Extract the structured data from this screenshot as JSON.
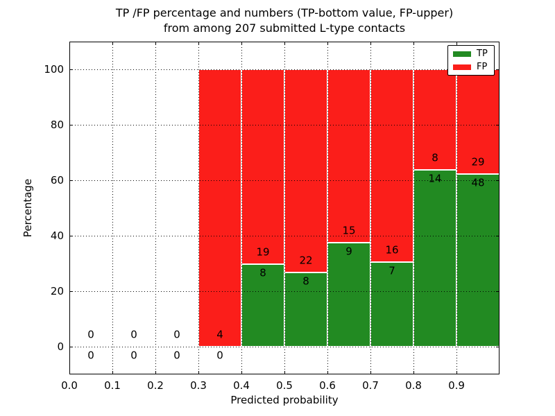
{
  "chart_data": {
    "type": "bar",
    "stacked": true,
    "title": "TP /FP percentage and numbers (TP-bottom value, FP-upper)\nfrom among 207 submitted L-type contacts",
    "xlabel": "Predicted probability",
    "ylabel": "Percentage",
    "total_contacts": 207,
    "xlim": [
      0.0,
      1.0
    ],
    "ylim": [
      -10,
      110
    ],
    "xticks": [
      "0.0",
      "0.1",
      "0.2",
      "0.3",
      "0.4",
      "0.5",
      "0.6",
      "0.7",
      "0.8",
      "0.9"
    ],
    "yticks": [
      "0",
      "20",
      "40",
      "60",
      "80",
      "100"
    ],
    "grid": "dotted",
    "grid_color": "#000000",
    "bar_width": 0.1,
    "bar_edge_color": "#ffffff",
    "annotation_note": "TP-bottom value, FP-upper",
    "bins": [
      {
        "x0": 0.0,
        "tp": 0,
        "fp": 0
      },
      {
        "x0": 0.1,
        "tp": 0,
        "fp": 0
      },
      {
        "x0": 0.2,
        "tp": 0,
        "fp": 0
      },
      {
        "x0": 0.3,
        "tp": 0,
        "fp": 4
      },
      {
        "x0": 0.4,
        "tp": 8,
        "fp": 19
      },
      {
        "x0": 0.5,
        "tp": 8,
        "fp": 22
      },
      {
        "x0": 0.6,
        "tp": 9,
        "fp": 15
      },
      {
        "x0": 0.7,
        "tp": 7,
        "fp": 16
      },
      {
        "x0": 0.8,
        "tp": 14,
        "fp": 8
      },
      {
        "x0": 0.9,
        "tp": 48,
        "fp": 29
      }
    ],
    "series": [
      {
        "name": "TP",
        "color": "#228a22"
      },
      {
        "name": "FP",
        "color": "#fb1e1a"
      }
    ],
    "legend": {
      "position": "upper right",
      "entries": [
        {
          "label": "TP",
          "color": "#228a22"
        },
        {
          "label": "FP",
          "color": "#fb1e1a"
        }
      ]
    }
  }
}
